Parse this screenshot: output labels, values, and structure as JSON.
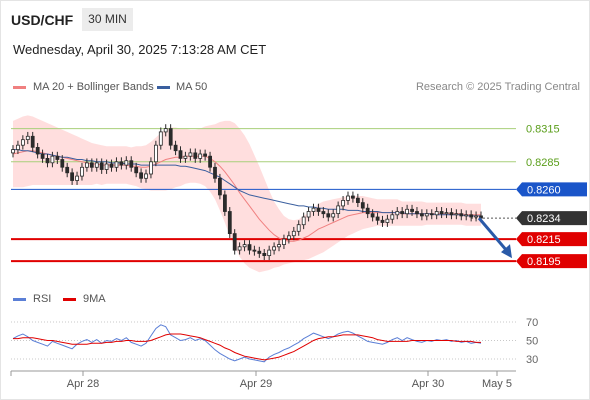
{
  "header": {
    "symbol": "USD/CHF",
    "timeframe": "30 MIN",
    "datetime": "Wednesday, April 30, 2025 7:13:28 AM CET"
  },
  "legend": {
    "ma20_label": "MA 20 + Bollinger Bands",
    "ma50_label": "MA 50",
    "credit": "Research © 2025 Trading Central"
  },
  "rsi_legend": {
    "rsi_label": "RSI",
    "ma_label": "9MA"
  },
  "colors": {
    "candle": "#2b2b2b",
    "ma20": "#f08080",
    "band_fill": "#ffd8d8",
    "ma50": "#3a5f9f",
    "resistance": "#a8cf7a",
    "resistance_text": "#5a9e1a",
    "pivot": "#1a55c9",
    "support": "#e00000",
    "current": "#333333",
    "rsi": "#5b7fd6",
    "rsi_ma": "#e00000",
    "arrow": "#2a5aa8"
  },
  "chart_data": [
    {
      "type": "candlestick",
      "title": "USD/CHF",
      "timeframe": "30 MIN",
      "x_tick_labels": [
        "Apr 28",
        "Apr 29",
        "Apr 30",
        "May 5"
      ],
      "ylim": [
        0.8168,
        0.834
      ],
      "levels": [
        {
          "value": 0.8315,
          "label": "0.8315",
          "kind": "resistance"
        },
        {
          "value": 0.8285,
          "label": "0.8285",
          "kind": "resistance"
        },
        {
          "value": 0.826,
          "label": "0.8260",
          "kind": "pivot"
        },
        {
          "value": 0.8234,
          "label": "0.8234",
          "kind": "current"
        },
        {
          "value": 0.8215,
          "label": "0.8215",
          "kind": "support"
        },
        {
          "value": 0.8195,
          "label": "0.8195",
          "kind": "support"
        }
      ],
      "closes": [
        0.8296,
        0.83,
        0.8305,
        0.8308,
        0.8298,
        0.8292,
        0.8288,
        0.8284,
        0.829,
        0.8287,
        0.828,
        0.8275,
        0.8268,
        0.8272,
        0.828,
        0.8284,
        0.828,
        0.8284,
        0.8278,
        0.8283,
        0.828,
        0.8285,
        0.8282,
        0.8286,
        0.828,
        0.8275,
        0.827,
        0.8274,
        0.8285,
        0.83,
        0.8312,
        0.8315,
        0.83,
        0.8295,
        0.8288,
        0.829,
        0.8293,
        0.8288,
        0.8292,
        0.829,
        0.828,
        0.827,
        0.8255,
        0.824,
        0.822,
        0.8205,
        0.8208,
        0.821,
        0.8205,
        0.8204,
        0.8202,
        0.82,
        0.8205,
        0.8208,
        0.821,
        0.8215,
        0.8218,
        0.8222,
        0.8228,
        0.8235,
        0.824,
        0.8243,
        0.824,
        0.8238,
        0.8235,
        0.8238,
        0.8245,
        0.825,
        0.8254,
        0.8252,
        0.8248,
        0.8243,
        0.8238,
        0.8235,
        0.8232,
        0.823,
        0.8233,
        0.8237,
        0.824,
        0.8238,
        0.8242,
        0.824,
        0.8238,
        0.8236,
        0.8238,
        0.8237,
        0.824,
        0.8238,
        0.8239,
        0.8237,
        0.8238,
        0.8236,
        0.8237,
        0.8235,
        0.8236,
        0.8234
      ],
      "ma20": [
        0.8292,
        0.8293,
        0.8294,
        0.8295,
        0.8295,
        0.8294,
        0.8293,
        0.8292,
        0.8291,
        0.829,
        0.8289,
        0.8288,
        0.8287,
        0.8286,
        0.8285,
        0.8284,
        0.8283,
        0.8283,
        0.8282,
        0.8282,
        0.8282,
        0.8282,
        0.8282,
        0.8282,
        0.8281,
        0.8281,
        0.828,
        0.828,
        0.8281,
        0.8283,
        0.8285,
        0.8287,
        0.8288,
        0.8289,
        0.8289,
        0.829,
        0.829,
        0.829,
        0.829,
        0.829,
        0.8288,
        0.8285,
        0.8281,
        0.8276,
        0.827,
        0.8264,
        0.8257,
        0.8251,
        0.8245,
        0.8239,
        0.8233,
        0.8228,
        0.8223,
        0.8219,
        0.8216,
        0.8214,
        0.8213,
        0.8213,
        0.8214,
        0.8216,
        0.8218,
        0.8221,
        0.8224,
        0.8226,
        0.8228,
        0.823,
        0.8232,
        0.8234,
        0.8236,
        0.8237,
        0.8238,
        0.8239,
        0.8239,
        0.8239,
        0.8239,
        0.8239,
        0.8239,
        0.8239,
        0.8239,
        0.8238,
        0.8238,
        0.8238,
        0.8238,
        0.8238,
        0.8238,
        0.8238,
        0.8238,
        0.8238,
        0.8238,
        0.8238,
        0.8238,
        0.8238,
        0.8237,
        0.8237,
        0.8237,
        0.8237
      ],
      "ma50": [
        0.8296,
        0.8296,
        0.8295,
        0.8295,
        0.8294,
        0.8293,
        0.8292,
        0.8292,
        0.8291,
        0.829,
        0.8289,
        0.8289,
        0.8288,
        0.8287,
        0.8287,
        0.8286,
        0.8286,
        0.8285,
        0.8285,
        0.8285,
        0.8284,
        0.8284,
        0.8284,
        0.8283,
        0.8283,
        0.8283,
        0.8282,
        0.8282,
        0.8282,
        0.8282,
        0.8282,
        0.8282,
        0.8282,
        0.8282,
        0.8281,
        0.8281,
        0.828,
        0.8279,
        0.8278,
        0.8277,
        0.8275,
        0.8273,
        0.8271,
        0.8268,
        0.8265,
        0.8262,
        0.8259,
        0.8257,
        0.8255,
        0.8254,
        0.8253,
        0.8252,
        0.8251,
        0.825,
        0.8249,
        0.8248,
        0.8247,
        0.8246,
        0.8245,
        0.8245,
        0.8244,
        0.8244,
        0.8243,
        0.8243,
        0.8242,
        0.8242,
        0.8242,
        0.8242,
        0.8241,
        0.8241,
        0.8241,
        0.824,
        0.824,
        0.824,
        0.824,
        0.8239,
        0.8239,
        0.8239,
        0.8239,
        0.8239,
        0.8238,
        0.8238,
        0.8238,
        0.8238,
        0.8238,
        0.8238,
        0.8237,
        0.8237,
        0.8237,
        0.8237,
        0.8237,
        0.8237,
        0.8236,
        0.8236,
        0.8236,
        0.8236
      ],
      "band_width": [
        0.003,
        0.0031,
        0.0032,
        0.0032,
        0.0031,
        0.003,
        0.0029,
        0.0028,
        0.0027,
        0.0026,
        0.0025,
        0.0024,
        0.0023,
        0.0022,
        0.0021,
        0.002,
        0.0019,
        0.0018,
        0.0018,
        0.0017,
        0.0017,
        0.0017,
        0.0017,
        0.0017,
        0.0017,
        0.0018,
        0.0019,
        0.002,
        0.0022,
        0.0024,
        0.0026,
        0.0028,
        0.0028,
        0.0027,
        0.0026,
        0.0025,
        0.0024,
        0.0024,
        0.0025,
        0.0027,
        0.003,
        0.0034,
        0.004,
        0.0046,
        0.0052,
        0.0056,
        0.0058,
        0.0058,
        0.0056,
        0.0052,
        0.0048,
        0.0042,
        0.0036,
        0.003,
        0.0026,
        0.0022,
        0.002,
        0.0019,
        0.0019,
        0.002,
        0.0021,
        0.0022,
        0.0023,
        0.0023,
        0.0022,
        0.0021,
        0.002,
        0.0019,
        0.0018,
        0.0017,
        0.0016,
        0.0015,
        0.0014,
        0.0013,
        0.0012,
        0.0012,
        0.0012,
        0.0012,
        0.0012,
        0.0011,
        0.0011,
        0.0011,
        0.0011,
        0.0011,
        0.001,
        0.001,
        0.001,
        0.001,
        0.001,
        0.001,
        0.001,
        0.001,
        0.001,
        0.001,
        0.001,
        0.001
      ],
      "forecast_arrow": {
        "from": 0.8234,
        "to": 0.8195
      }
    },
    {
      "type": "line",
      "title": "RSI",
      "ylim": [
        20,
        80
      ],
      "y_ticks": [
        "70",
        "50",
        "30"
      ],
      "series": [
        {
          "name": "RSI",
          "values": [
            52,
            55,
            57,
            54,
            50,
            48,
            46,
            44,
            49,
            47,
            45,
            43,
            41,
            46,
            49,
            51,
            48,
            51,
            47,
            50,
            49,
            52,
            50,
            53,
            48,
            46,
            44,
            47,
            55,
            63,
            67,
            65,
            56,
            53,
            50,
            51,
            53,
            50,
            52,
            50,
            45,
            40,
            36,
            33,
            30,
            28,
            30,
            32,
            30,
            29,
            28,
            27,
            32,
            35,
            37,
            40,
            42,
            45,
            48,
            52,
            55,
            58,
            56,
            54,
            52,
            54,
            57,
            59,
            60,
            58,
            55,
            52,
            49,
            48,
            47,
            46,
            48,
            51,
            53,
            50,
            53,
            51,
            49,
            48,
            50,
            49,
            51,
            50,
            51,
            49,
            50,
            48,
            49,
            47,
            48,
            47
          ]
        },
        {
          "name": "9MA",
          "values": [
            52,
            52,
            53,
            53,
            53,
            52,
            51,
            50,
            50,
            49,
            48,
            47,
            46,
            46,
            46,
            46,
            47,
            47,
            47,
            48,
            48,
            49,
            49,
            50,
            50,
            49,
            49,
            49,
            50,
            52,
            54,
            56,
            57,
            57,
            57,
            56,
            55,
            54,
            53,
            51,
            49,
            47,
            45,
            42,
            40,
            37,
            35,
            33,
            32,
            31,
            30,
            29,
            30,
            31,
            32,
            34,
            36,
            38,
            41,
            44,
            47,
            50,
            52,
            53,
            54,
            54,
            55,
            56,
            56,
            56,
            56,
            55,
            54,
            53,
            51,
            50,
            49,
            49,
            49,
            49,
            49,
            50,
            50,
            50,
            50,
            50,
            50,
            50,
            50,
            50,
            49,
            49,
            49,
            49,
            48,
            48
          ]
        }
      ]
    }
  ]
}
